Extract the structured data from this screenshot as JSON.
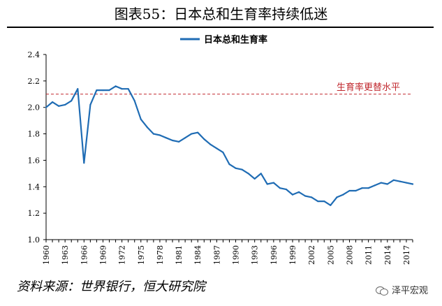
{
  "title": "图表55：日本总和生育率持续低迷",
  "source": "资料来源：世界银行，恒大研究院",
  "brand": {
    "name": "泽平宏观",
    "icon": "wechat-icon"
  },
  "chart_data": {
    "type": "line",
    "title": "图表55：日本总和生育率持续低迷",
    "xlabel": "",
    "ylabel": "",
    "ylim": [
      1.0,
      2.4
    ],
    "yticks": [
      "1.0",
      "1.2",
      "1.4",
      "1.6",
      "1.8",
      "2.0",
      "2.2",
      "2.4"
    ],
    "xlim": [
      1960,
      2018
    ],
    "xticks": [
      "1960",
      "1963",
      "1966",
      "1969",
      "1972",
      "1975",
      "1978",
      "1981",
      "1984",
      "1987",
      "1990",
      "1993",
      "1996",
      "1999",
      "2002",
      "2005",
      "2008",
      "2011",
      "2014",
      "2017"
    ],
    "grid": false,
    "legend": "top-center",
    "series": [
      {
        "name": "日本总和生育率",
        "color": "#1f6cb4",
        "x": [
          1960,
          1961,
          1962,
          1963,
          1964,
          1965,
          1966,
          1967,
          1968,
          1969,
          1970,
          1971,
          1972,
          1973,
          1974,
          1975,
          1976,
          1977,
          1978,
          1979,
          1980,
          1981,
          1982,
          1983,
          1984,
          1985,
          1986,
          1987,
          1988,
          1989,
          1990,
          1991,
          1992,
          1993,
          1994,
          1995,
          1996,
          1997,
          1998,
          1999,
          2000,
          2001,
          2002,
          2003,
          2004,
          2005,
          2006,
          2007,
          2008,
          2009,
          2010,
          2011,
          2012,
          2013,
          2014,
          2015,
          2016,
          2017,
          2018
        ],
        "y": [
          2.0,
          2.04,
          2.01,
          2.02,
          2.05,
          2.14,
          1.58,
          2.02,
          2.13,
          2.13,
          2.13,
          2.16,
          2.14,
          2.14,
          2.05,
          1.91,
          1.85,
          1.8,
          1.79,
          1.77,
          1.75,
          1.74,
          1.77,
          1.8,
          1.81,
          1.76,
          1.72,
          1.69,
          1.66,
          1.57,
          1.54,
          1.53,
          1.5,
          1.46,
          1.5,
          1.42,
          1.43,
          1.39,
          1.38,
          1.34,
          1.36,
          1.33,
          1.32,
          1.29,
          1.29,
          1.26,
          1.32,
          1.34,
          1.37,
          1.37,
          1.39,
          1.39,
          1.41,
          1.43,
          1.42,
          1.45,
          1.44,
          1.43,
          1.42
        ]
      }
    ],
    "annotations": [
      {
        "type": "hline",
        "y": 2.1,
        "label": "生育率更替水平",
        "color": "#c0272d",
        "style": "dashed"
      }
    ]
  }
}
